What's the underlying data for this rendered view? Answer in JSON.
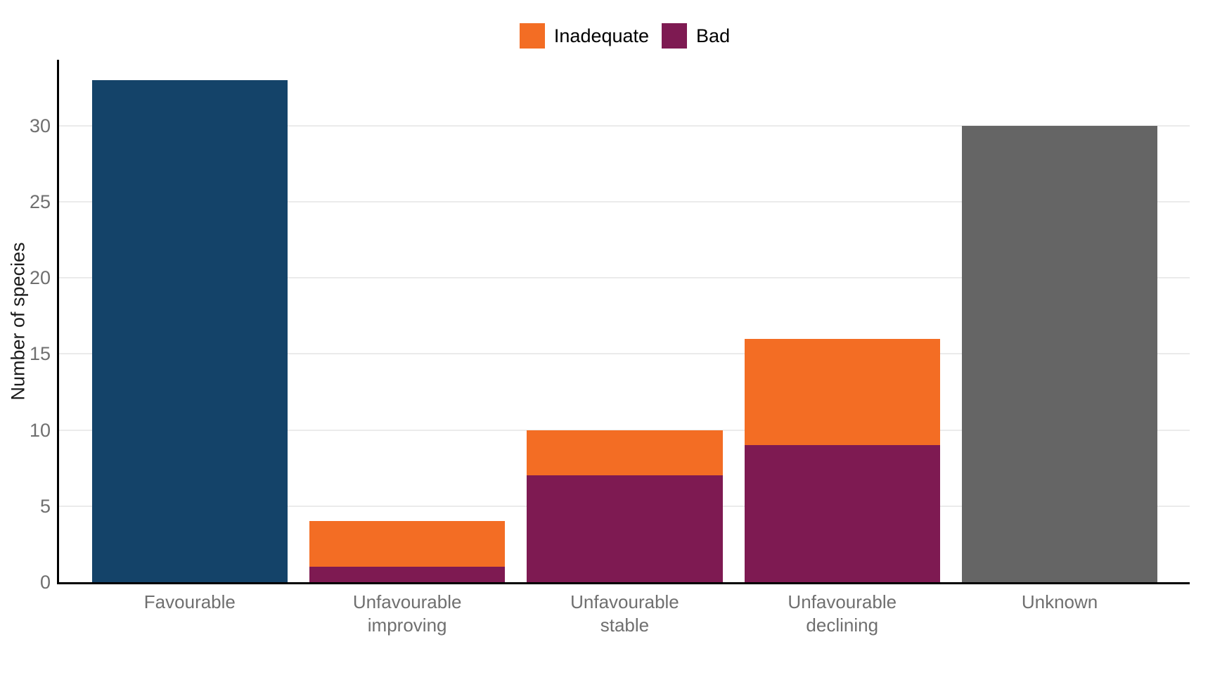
{
  "chart_data": {
    "type": "bar",
    "stacked": true,
    "title": "",
    "xlabel": "",
    "ylabel": "Number of species",
    "ylim": [
      0,
      34.3
    ],
    "yticks": [
      0,
      5,
      10,
      15,
      20,
      25,
      30
    ],
    "grid": "horizontal",
    "legend_position": "top-center",
    "categories": [
      "Favourable",
      "Unfavourable improving",
      "Unfavourable stable",
      "Unfavourable declining",
      "Unknown"
    ],
    "category_lines": [
      [
        "Favourable"
      ],
      [
        "Unfavourable",
        "improving"
      ],
      [
        "Unfavourable",
        "stable"
      ],
      [
        "Unfavourable",
        "declining"
      ],
      [
        "Unknown"
      ]
    ],
    "series": [
      {
        "name": "Favourable",
        "color": "#144369",
        "in_legend": false,
        "values": [
          33,
          0,
          0,
          0,
          0
        ]
      },
      {
        "name": "Bad",
        "color": "#7E1A52",
        "in_legend": true,
        "values": [
          0,
          1,
          7,
          9,
          0
        ]
      },
      {
        "name": "Inadequate",
        "color": "#F36D24",
        "in_legend": true,
        "values": [
          0,
          3,
          3,
          7,
          0
        ]
      },
      {
        "name": "Unknown",
        "color": "#656565",
        "in_legend": false,
        "values": [
          0,
          0,
          0,
          0,
          30
        ]
      }
    ],
    "totals": [
      33,
      4,
      10,
      16,
      30
    ],
    "legend": {
      "entries": [
        {
          "label": "Inadequate",
          "color": "#F36D24"
        },
        {
          "label": "Bad",
          "color": "#7E1A52"
        }
      ]
    },
    "colors": {
      "background": "#FFFFFF",
      "axis_line": "#000000",
      "grid_line": "#EBEBEB",
      "tick_label": "#6F6F6F",
      "category_label": "#6F6F6F",
      "axis_title": "#1A1A1A",
      "legend_text": "#000000"
    }
  }
}
